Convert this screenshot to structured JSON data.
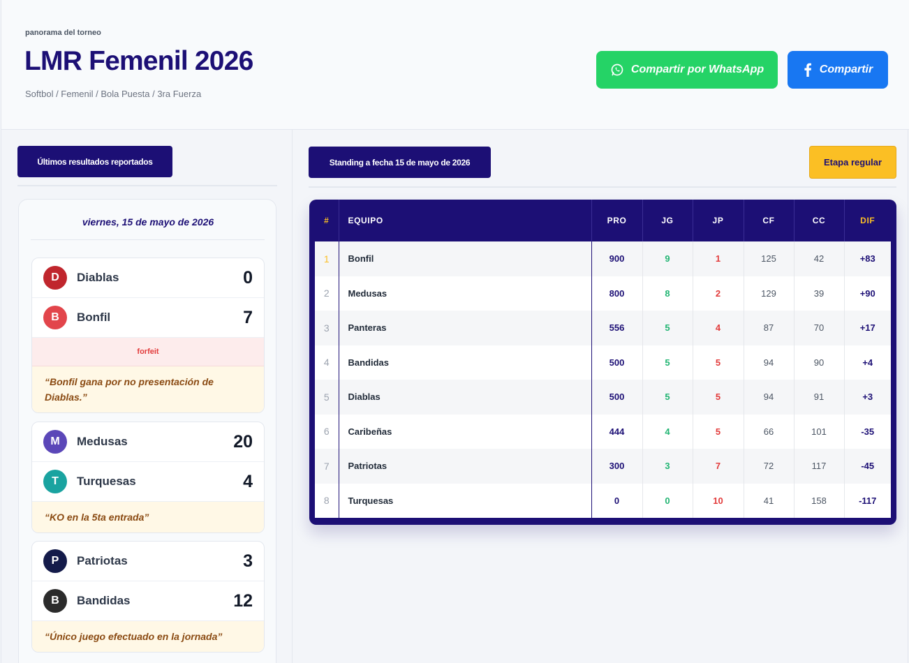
{
  "header": {
    "eyebrow": "panorama del torneo",
    "title": "LMR Femenil 2026",
    "subtitle": "Softbol / Femenil / Bola Puesta / 3ra Fuerza",
    "whatsapp_label": "Compartir por WhatsApp",
    "facebook_label": "Compartir"
  },
  "results": {
    "section_label": "Últimos resultados reportados",
    "date": "viernes, 15 de mayo de 2026",
    "games": [
      {
        "home": {
          "name": "Diablas",
          "score": "0",
          "color": "#c0262d",
          "initial": "D"
        },
        "away": {
          "name": "Bonfil",
          "score": "7",
          "color": "#e2454b",
          "initial": "B"
        },
        "status": "forfeit",
        "note": "“Bonfil gana por no presentación de Diablas.”"
      },
      {
        "home": {
          "name": "Medusas",
          "score": "20",
          "color": "#5b47b8",
          "initial": "M"
        },
        "away": {
          "name": "Turquesas",
          "score": "4",
          "color": "#1aa3a0",
          "initial": "T"
        },
        "status": "",
        "note": "“KO en la 5ta entrada”"
      },
      {
        "home": {
          "name": "Patriotas",
          "score": "3",
          "color": "#141b4a",
          "initial": "P"
        },
        "away": {
          "name": "Bandidas",
          "score": "12",
          "color": "#2b2b2b",
          "initial": "B"
        },
        "status": "",
        "note": "“Único juego efectuado en la jornada”"
      }
    ]
  },
  "standings": {
    "section_label": "Standing a fecha 15 de mayo de 2026",
    "stage_label": "Etapa regular",
    "columns": [
      "#",
      "EQUIPO",
      "PRO",
      "JG",
      "JP",
      "CF",
      "CC",
      "DIF"
    ],
    "rows": [
      {
        "pos": "1",
        "team": "Bonfil",
        "pro": "900",
        "jg": "9",
        "jp": "1",
        "cf": "125",
        "cc": "42",
        "dif": "+83"
      },
      {
        "pos": "2",
        "team": "Medusas",
        "pro": "800",
        "jg": "8",
        "jp": "2",
        "cf": "129",
        "cc": "39",
        "dif": "+90"
      },
      {
        "pos": "3",
        "team": "Panteras",
        "pro": "556",
        "jg": "5",
        "jp": "4",
        "cf": "87",
        "cc": "70",
        "dif": "+17"
      },
      {
        "pos": "4",
        "team": "Bandidas",
        "pro": "500",
        "jg": "5",
        "jp": "5",
        "cf": "94",
        "cc": "90",
        "dif": "+4"
      },
      {
        "pos": "5",
        "team": "Diablas",
        "pro": "500",
        "jg": "5",
        "jp": "5",
        "cf": "94",
        "cc": "91",
        "dif": "+3"
      },
      {
        "pos": "6",
        "team": "Caribeñas",
        "pro": "444",
        "jg": "4",
        "jp": "5",
        "cf": "66",
        "cc": "101",
        "dif": "-35"
      },
      {
        "pos": "7",
        "team": "Patriotas",
        "pro": "300",
        "jg": "3",
        "jp": "7",
        "cf": "72",
        "cc": "117",
        "dif": "-45"
      },
      {
        "pos": "8",
        "team": "Turquesas",
        "pro": "0",
        "jg": "0",
        "jp": "10",
        "cf": "41",
        "cc": "158",
        "dif": "-117"
      }
    ]
  },
  "colors": {
    "brand": "#1c0f75",
    "accent": "#fbbf24",
    "whatsapp": "#25d366",
    "facebook": "#1877f2",
    "win": "#22b573",
    "loss": "#e23b3b"
  }
}
